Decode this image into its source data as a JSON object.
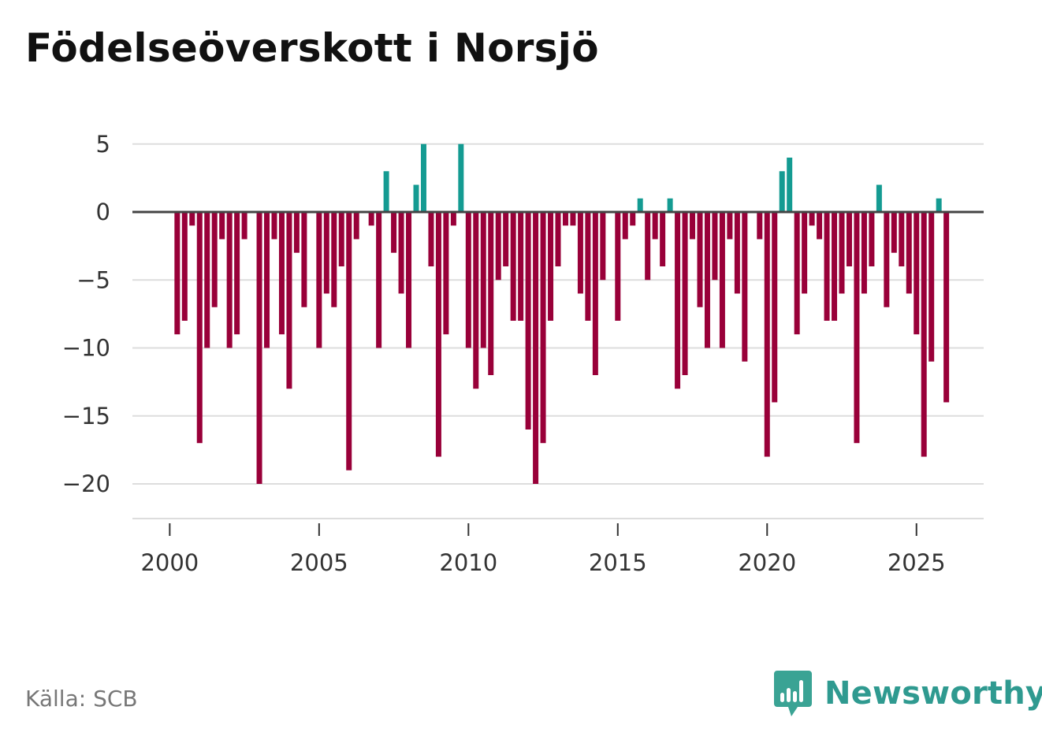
{
  "title": "Födelseöverskott i Norsjö",
  "source": "Källa: SCB",
  "brand": {
    "name": "Newsworthy",
    "icon": "newsworthy-logo-icon",
    "color": "#3aa394"
  },
  "colors": {
    "positive": "#149b92",
    "negative": "#990039",
    "grid": "#dddddd",
    "zero_line": "#444444"
  },
  "chart_data": {
    "type": "bar",
    "title": "Födelseöverskott i Norsjö",
    "xlabel": "",
    "ylabel": "",
    "x_start": 2000.25,
    "x_step": 0.25,
    "ylim": [
      -22,
      5
    ],
    "xlim": [
      1998.75,
      2027.25
    ],
    "yticks": [
      5,
      0,
      -5,
      -10,
      -15,
      -20
    ],
    "ytick_labels": [
      "5",
      "0",
      "−5",
      "−10",
      "−15",
      "−20"
    ],
    "xticks": [
      2000,
      2005,
      2010,
      2015,
      2020,
      2025
    ],
    "xtick_labels": [
      "2000",
      "2005",
      "2010",
      "2015",
      "2020",
      "2025"
    ],
    "grid": true,
    "values": [
      -9,
      -8,
      -1,
      -17,
      -10,
      -7,
      -2,
      -10,
      -9,
      -2,
      0,
      -20,
      -10,
      -2,
      -9,
      -13,
      -3,
      -7,
      0,
      -10,
      -6,
      -7,
      -4,
      -19,
      -2,
      0,
      -1,
      -10,
      3,
      -3,
      -6,
      -10,
      2,
      5,
      -4,
      -18,
      -9,
      -1,
      5,
      -10,
      -13,
      -10,
      -12,
      -5,
      -4,
      -8,
      -8,
      -16,
      -20,
      -17,
      -8,
      -4,
      -1,
      -1,
      -6,
      -8,
      -12,
      -5,
      0,
      -8,
      -2,
      -1,
      1,
      -5,
      -2,
      -4,
      1,
      -13,
      -12,
      -2,
      -7,
      -10,
      -5,
      -10,
      -2,
      -6,
      -11,
      0,
      -2,
      -18,
      -14,
      3,
      4,
      -9,
      -6,
      -1,
      -2,
      -8,
      -8,
      -6,
      -4,
      -17,
      -6,
      -4,
      2,
      -7,
      -3,
      -4,
      -6,
      -9,
      -18,
      -11,
      1,
      -14
    ]
  }
}
